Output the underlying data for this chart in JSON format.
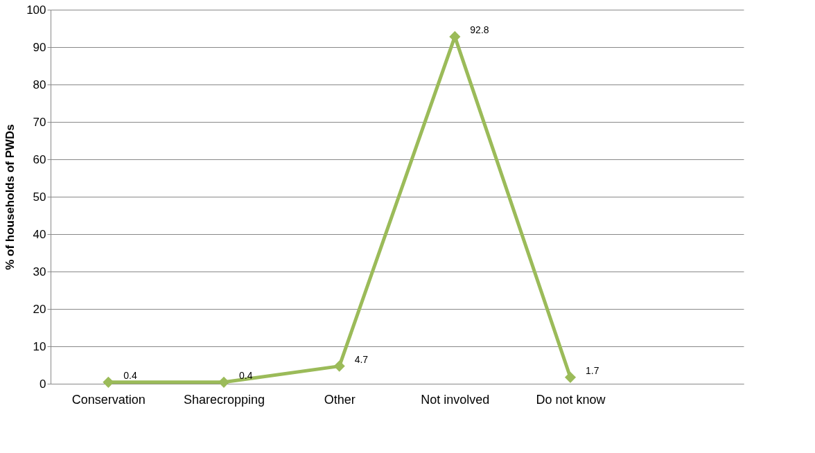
{
  "chart_data": {
    "type": "line",
    "ylabel": "% of households of PWDs",
    "categories": [
      "Conservation",
      "Sharecropping",
      "Other",
      "Not involved",
      "Do not know",
      null
    ],
    "series": [
      {
        "color": "#9bbb59",
        "values": [
          0.4,
          0.4,
          4.7,
          92.8,
          1.7,
          null
        ]
      }
    ],
    "ylim": [
      0,
      100
    ],
    "yticks": [
      0,
      10,
      20,
      30,
      40,
      50,
      60,
      70,
      80,
      90,
      100
    ],
    "grid": "y",
    "marker": "diamond",
    "line_style": "solid",
    "data_labels": true
  }
}
